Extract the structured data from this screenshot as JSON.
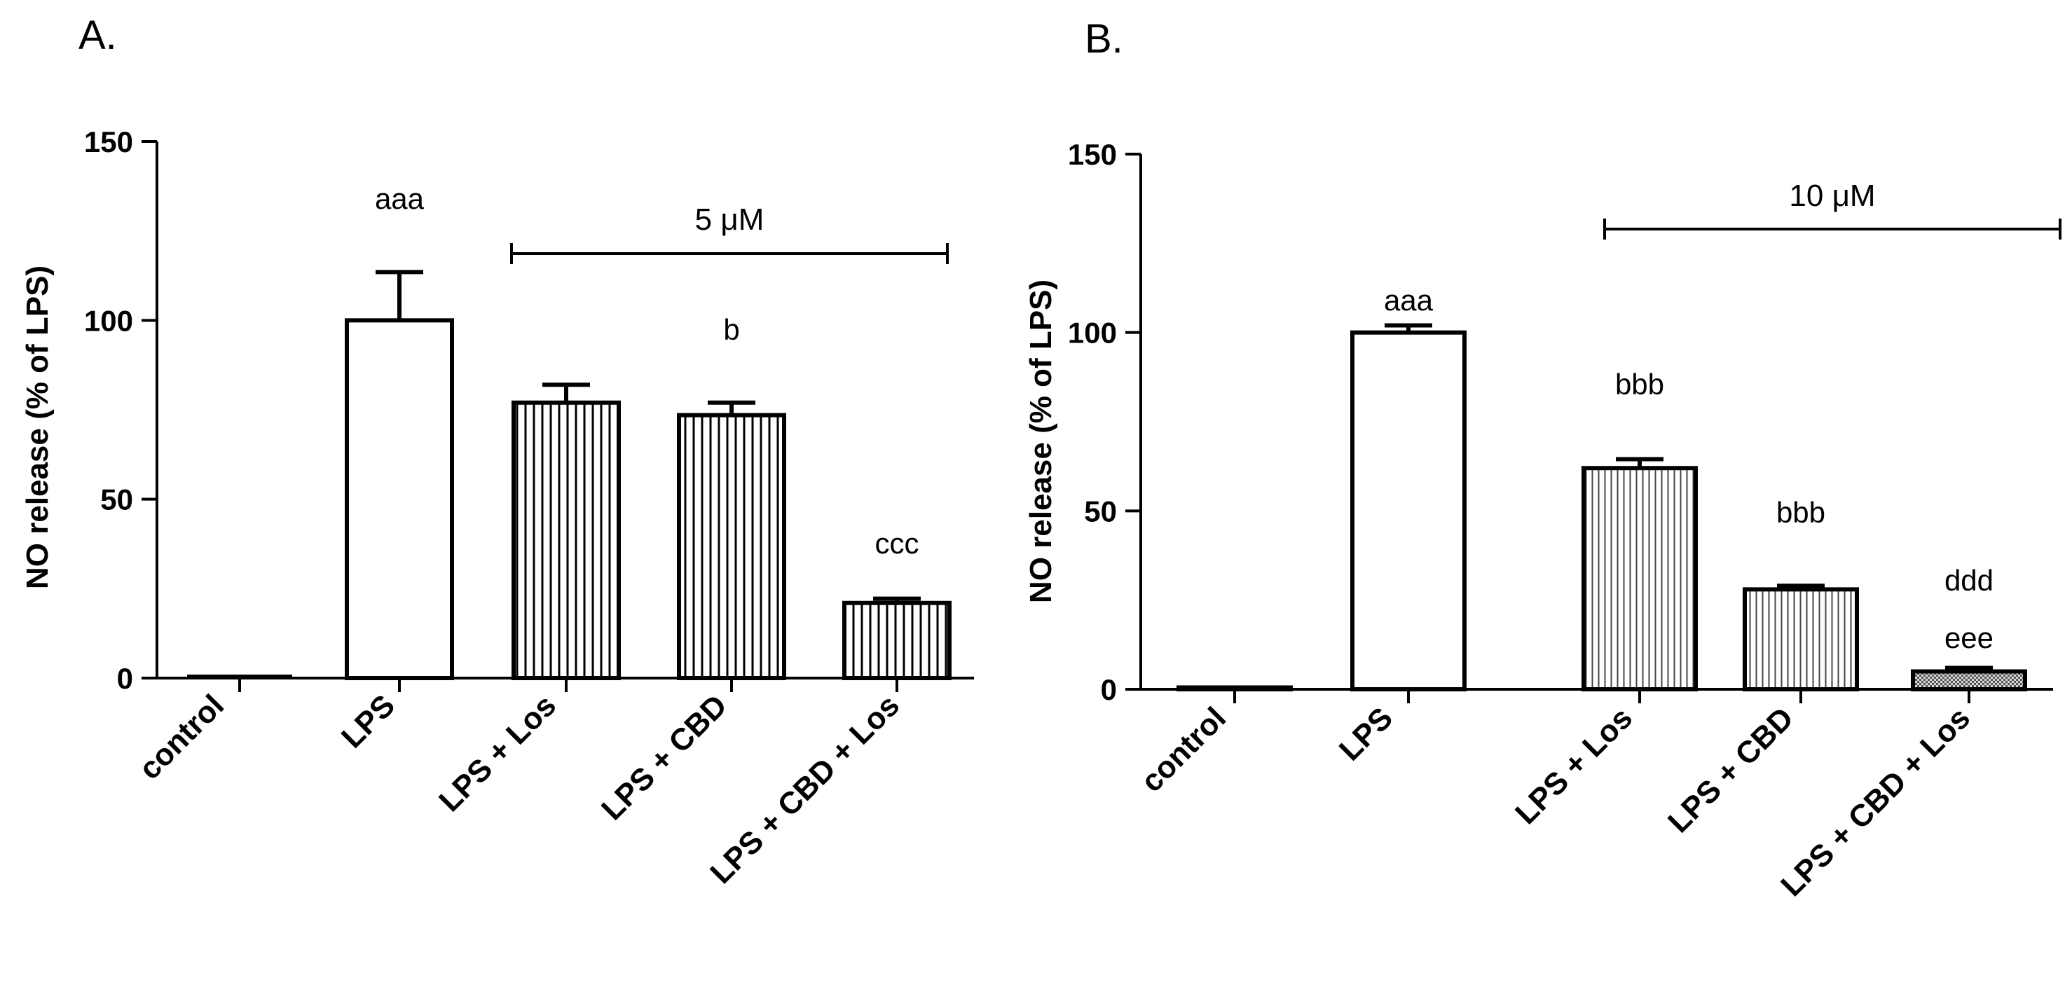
{
  "chart_data": [
    {
      "type": "bar",
      "panel": "A.",
      "ylabel": "NO release (% of LPS)",
      "ylim": [
        0,
        150
      ],
      "yticks": [
        0,
        50,
        100,
        150
      ],
      "categories": [
        "control",
        "LPS",
        "LPS + Los",
        "LPS + CBD",
        "LPS + CBD + Los"
      ],
      "values": [
        0,
        100,
        77,
        73.5,
        21
      ],
      "errors": [
        0,
        13.5,
        5,
        3.5,
        1.2
      ],
      "fills": [
        "none",
        "none",
        "vertical-lines",
        "vertical-lines",
        "vertical-lines"
      ],
      "annotations": [
        "",
        "aaa",
        "",
        "b",
        "ccc"
      ],
      "bracket": {
        "label": "5 μM",
        "from": "LPS + Los",
        "to": "LPS + CBD + Los"
      },
      "legend": "none"
    },
    {
      "type": "bar",
      "panel": "B.",
      "ylabel": "NO release (% of LPS)",
      "ylim": [
        0,
        150
      ],
      "yticks": [
        0,
        50,
        100,
        150
      ],
      "categories": [
        "control",
        "LPS",
        "LPS + Los",
        "LPS + CBD",
        "LPS + CBD + Los"
      ],
      "values": [
        0.5,
        100,
        62,
        28,
        5
      ],
      "errors": [
        0.3,
        2,
        2.5,
        1,
        1
      ],
      "fills": [
        "none",
        "none",
        "vertical-lines",
        "vertical-lines",
        "dotted"
      ],
      "annotations": [
        "",
        "aaa",
        "bbb",
        "bbb",
        "ddd\neee"
      ],
      "bracket": {
        "label": "10 μM",
        "from": "LPS + Los",
        "to": "LPS + CBD + Los"
      },
      "legend": "none"
    }
  ]
}
